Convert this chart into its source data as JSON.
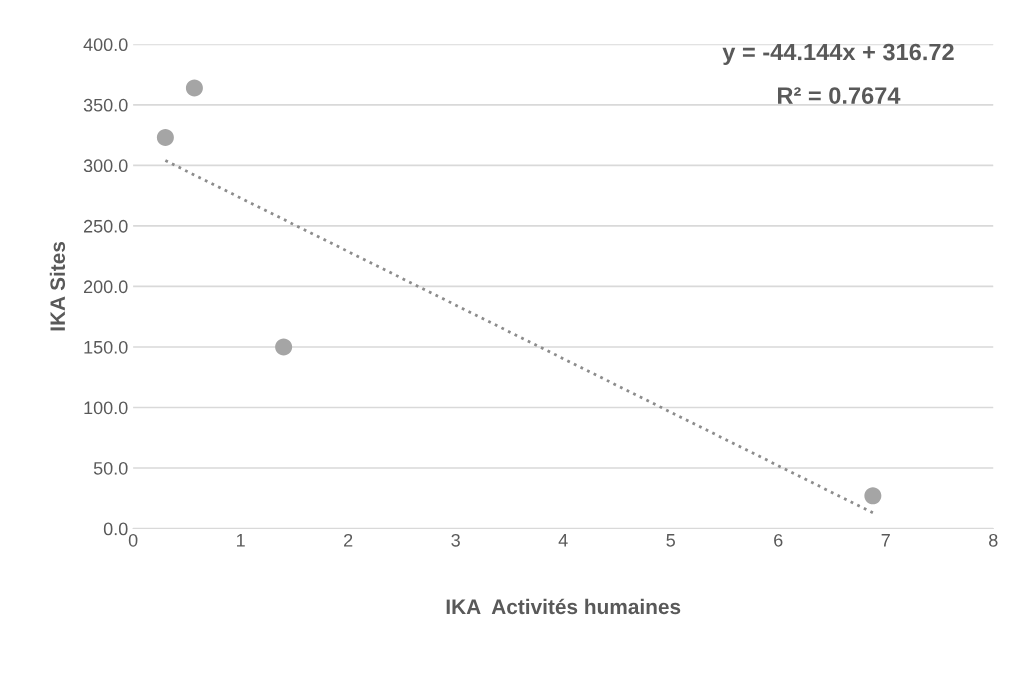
{
  "chart_data": {
    "type": "scatter",
    "xlabel": "IKA  Activités humaines",
    "ylabel": "IKA Sites",
    "x": [
      0.3,
      0.57,
      1.4,
      6.88
    ],
    "series": [
      {
        "color": "#a5a5a5",
        "values": [
          323,
          364,
          150,
          27
        ],
        "marker": "circle"
      },
      {
        "type": "line",
        "color": "#8c8c8c",
        "x": [
          0.3,
          6.88
        ],
        "values": [
          304,
          13
        ],
        "line_style": "dotted"
      }
    ],
    "xlim": [
      0,
      8
    ],
    "xticks": [
      0,
      1,
      2,
      3,
      4,
      5,
      6,
      7,
      8
    ],
    "ylim": [
      0,
      400
    ],
    "yticks": [
      {
        "value": 0,
        "label": "0.0"
      },
      {
        "value": 50,
        "label": "50.0"
      },
      {
        "value": 100,
        "label": "100.0"
      },
      {
        "value": 150,
        "label": "150.0"
      },
      {
        "value": 200,
        "label": "200.0"
      },
      {
        "value": 250,
        "label": "250.0"
      },
      {
        "value": 300,
        "label": "300.0"
      },
      {
        "value": 350,
        "label": "350.0"
      },
      {
        "value": 400,
        "label": "400.0"
      }
    ],
    "grid": "y",
    "annotations": [
      "y = -44.144x + 316.72",
      "R² = 0.7674"
    ]
  }
}
